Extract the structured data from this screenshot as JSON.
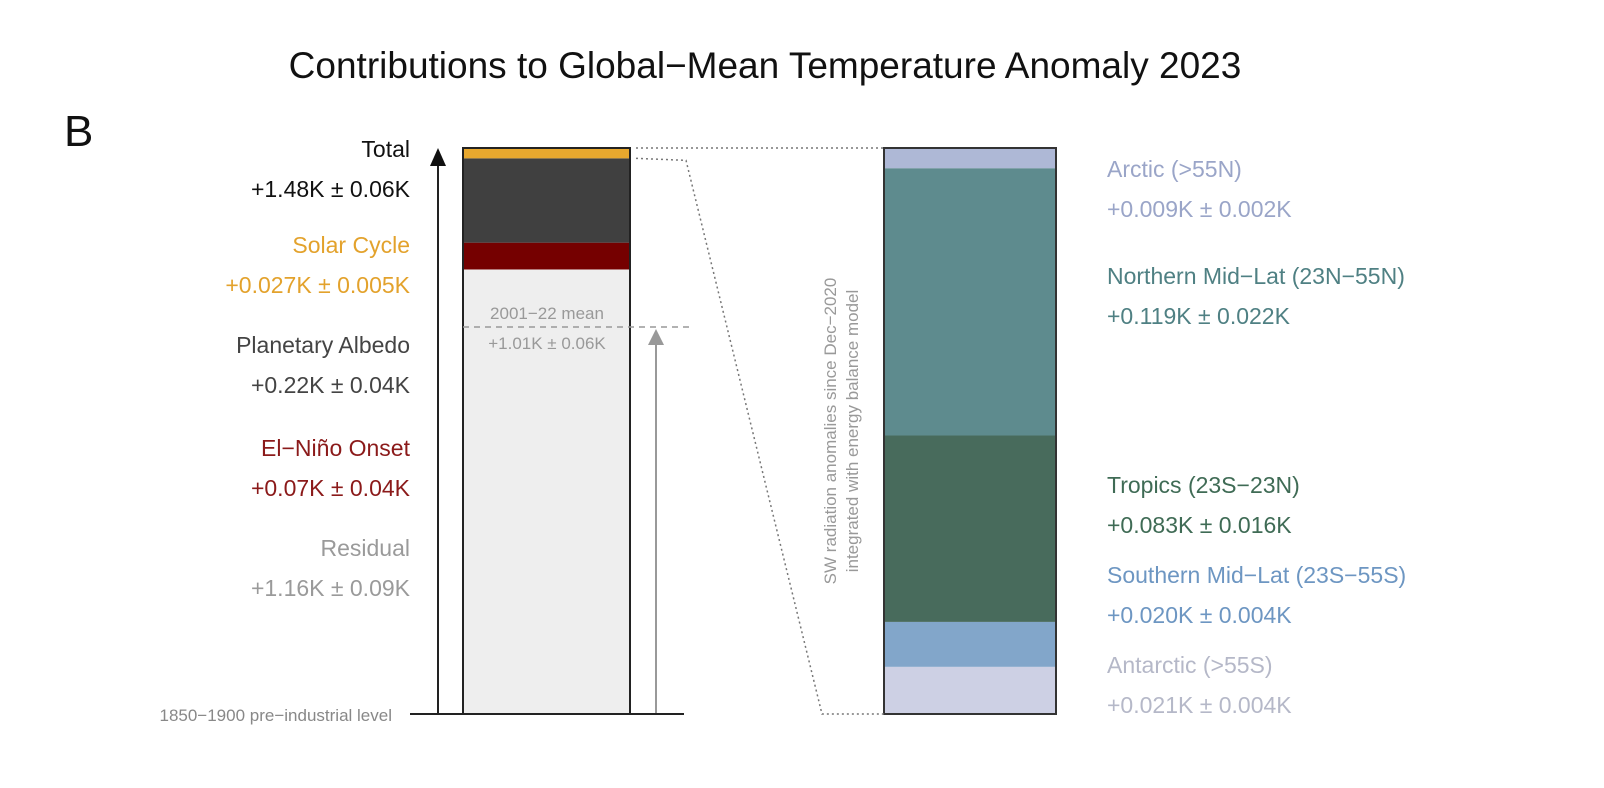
{
  "chart_data": {
    "type": "bar",
    "title": "Contributions to Global−Mean Temperature Anomaly 2023",
    "panel_label": "B",
    "baseline_label": "1850−1900 pre−industrial level",
    "total": {
      "name": "Total",
      "label": "+1.48K ± 0.06K",
      "value": 1.48,
      "uncertainty": 0.06,
      "color": "#111111"
    },
    "left_stack": [
      {
        "name": "Residual",
        "label": "+1.16K ± 0.09K",
        "value": 1.16,
        "uncertainty": 0.09,
        "color": "#EEEEEE",
        "text_color": "#9A9A9A"
      },
      {
        "name": "El−Niño Onset",
        "label": "+0.07K ± 0.04K",
        "value": 0.07,
        "uncertainty": 0.04,
        "color": "#750000",
        "text_color": "#8B1A1A"
      },
      {
        "name": "Planetary Albedo",
        "label": "+0.22K ± 0.04K",
        "value": 0.22,
        "uncertainty": 0.04,
        "color": "#404040",
        "text_color": "#444444"
      },
      {
        "name": "Solar Cycle",
        "label": "+0.027K ± 0.005K",
        "value": 0.027,
        "uncertainty": 0.005,
        "color": "#E8A82E",
        "text_color": "#E3A22C"
      }
    ],
    "mean_reference": {
      "label_line1": "2001−22 mean",
      "label_line2": "+1.01K ± 0.06K",
      "value": 1.01
    },
    "right_axis_label_line1": "SW radiation anomalies since Dec−2020",
    "right_axis_label_line2": "integrated with energy balance model",
    "right_stack": [
      {
        "name": "Antarctic (>55S)",
        "label": "+0.021K ± 0.004K",
        "value": 0.021,
        "uncertainty": 0.004,
        "color": "#CDD0E4",
        "text_color": "#B5B8C8"
      },
      {
        "name": "Southern Mid−Lat (23S−55S)",
        "label": "+0.020K ± 0.004K",
        "value": 0.02,
        "uncertainty": 0.004,
        "color": "#82A6CA",
        "text_color": "#6D96C2"
      },
      {
        "name": "Tropics (23S−23N)",
        "label": "+0.083K ± 0.016K",
        "value": 0.083,
        "uncertainty": 0.016,
        "color": "#486B5C",
        "text_color": "#3F6B55"
      },
      {
        "name": "Northern Mid−Lat (23N−55N)",
        "label": "+0.119K ± 0.022K",
        "value": 0.119,
        "uncertainty": 0.022,
        "color": "#5E8B8E",
        "text_color": "#4F8083"
      },
      {
        "name": "Arctic (>55N)",
        "label": "+0.009K ± 0.002K",
        "value": 0.009,
        "uncertainty": 0.002,
        "color": "#AEB8D6",
        "text_color": "#9AA5C8"
      }
    ]
  }
}
